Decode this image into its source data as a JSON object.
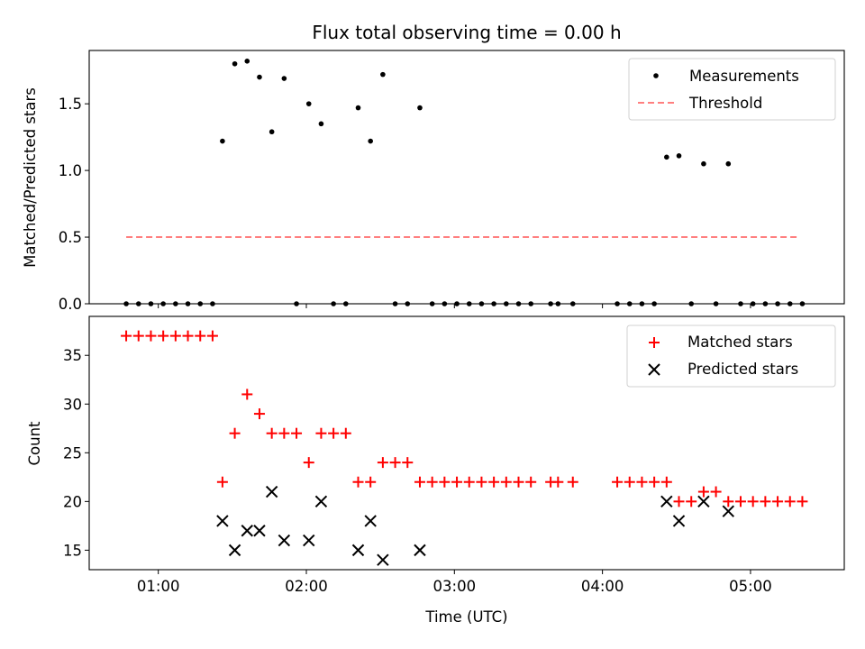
{
  "figure": {
    "title": "Flux total observing time = 0.00 h"
  },
  "chart_data": [
    {
      "type": "scatter",
      "ylabel": "Matched/Predicted stars",
      "xlabel": "",
      "xlim": [
        "00:32",
        "05:38"
      ],
      "ylim": [
        0,
        1.9
      ],
      "yticks": [
        0.0,
        0.5,
        1.0,
        1.5
      ],
      "ytick_labels": [
        "0.0",
        "0.5",
        "1.0",
        "1.5"
      ],
      "legend_position": "top-right",
      "threshold": {
        "value": 0.5,
        "x_start": "00:47",
        "x_end": "05:20",
        "color": "#ff7f7f"
      },
      "series": [
        {
          "name": "Measurements",
          "marker": "dot",
          "color": "#000000",
          "points": [
            [
              "00:47",
              0
            ],
            [
              "00:52",
              0
            ],
            [
              "00:57",
              0
            ],
            [
              "01:02",
              0
            ],
            [
              "01:07",
              0
            ],
            [
              "01:12",
              0
            ],
            [
              "01:17",
              0
            ],
            [
              "01:22",
              0
            ],
            [
              "01:26",
              1.22
            ],
            [
              "01:31",
              1.8
            ],
            [
              "01:36",
              1.82
            ],
            [
              "01:41",
              1.7
            ],
            [
              "01:46",
              1.29
            ],
            [
              "01:51",
              1.69
            ],
            [
              "01:56",
              0
            ],
            [
              "02:01",
              1.5
            ],
            [
              "02:06",
              1.35
            ],
            [
              "02:11",
              0
            ],
            [
              "02:16",
              0
            ],
            [
              "02:21",
              1.47
            ],
            [
              "02:26",
              1.22
            ],
            [
              "02:31",
              1.72
            ],
            [
              "02:36",
              0
            ],
            [
              "02:41",
              0
            ],
            [
              "02:46",
              1.47
            ],
            [
              "02:51",
              0
            ],
            [
              "02:56",
              0
            ],
            [
              "03:01",
              0
            ],
            [
              "03:06",
              0
            ],
            [
              "03:11",
              0
            ],
            [
              "03:16",
              0
            ],
            [
              "03:21",
              0
            ],
            [
              "03:26",
              0
            ],
            [
              "03:31",
              0
            ],
            [
              "03:39",
              0
            ],
            [
              "03:42",
              0
            ],
            [
              "03:48",
              0
            ],
            [
              "04:06",
              0
            ],
            [
              "04:11",
              0
            ],
            [
              "04:16",
              0
            ],
            [
              "04:21",
              0
            ],
            [
              "04:26",
              1.1
            ],
            [
              "04:31",
              1.11
            ],
            [
              "04:36",
              0
            ],
            [
              "04:41",
              1.05
            ],
            [
              "04:46",
              0
            ],
            [
              "04:51",
              1.05
            ],
            [
              "04:56",
              0
            ],
            [
              "05:01",
              0
            ],
            [
              "05:06",
              0
            ],
            [
              "05:11",
              0
            ],
            [
              "05:16",
              0
            ],
            [
              "05:21",
              0
            ]
          ]
        },
        {
          "name": "Threshold",
          "style": "dashed",
          "color": "#ff7f7f"
        }
      ]
    },
    {
      "type": "scatter",
      "ylabel": "Count",
      "xlabel": "Time (UTC)",
      "xlim": [
        "00:32",
        "05:38"
      ],
      "ylim": [
        13,
        39
      ],
      "yticks": [
        15,
        20,
        25,
        30,
        35
      ],
      "ytick_labels": [
        "15",
        "20",
        "25",
        "30",
        "35"
      ],
      "xticks": [
        "01:00",
        "02:00",
        "03:00",
        "04:00",
        "05:00"
      ],
      "legend_position": "top-right",
      "series": [
        {
          "name": "Matched stars",
          "marker": "plus",
          "color": "#ff0000",
          "points": [
            [
              "00:47",
              37
            ],
            [
              "00:52",
              37
            ],
            [
              "00:57",
              37
            ],
            [
              "01:02",
              37
            ],
            [
              "01:07",
              37
            ],
            [
              "01:12",
              37
            ],
            [
              "01:17",
              37
            ],
            [
              "01:22",
              37
            ],
            [
              "01:26",
              22
            ],
            [
              "01:31",
              27
            ],
            [
              "01:36",
              31
            ],
            [
              "01:41",
              29
            ],
            [
              "01:46",
              27
            ],
            [
              "01:51",
              27
            ],
            [
              "01:56",
              27
            ],
            [
              "02:01",
              24
            ],
            [
              "02:06",
              27
            ],
            [
              "02:11",
              27
            ],
            [
              "02:16",
              27
            ],
            [
              "02:21",
              22
            ],
            [
              "02:26",
              22
            ],
            [
              "02:31",
              24
            ],
            [
              "02:36",
              24
            ],
            [
              "02:41",
              24
            ],
            [
              "02:46",
              22
            ],
            [
              "02:51",
              22
            ],
            [
              "02:56",
              22
            ],
            [
              "03:01",
              22
            ],
            [
              "03:06",
              22
            ],
            [
              "03:11",
              22
            ],
            [
              "03:16",
              22
            ],
            [
              "03:21",
              22
            ],
            [
              "03:26",
              22
            ],
            [
              "03:31",
              22
            ],
            [
              "03:39",
              22
            ],
            [
              "03:42",
              22
            ],
            [
              "03:48",
              22
            ],
            [
              "04:06",
              22
            ],
            [
              "04:11",
              22
            ],
            [
              "04:16",
              22
            ],
            [
              "04:21",
              22
            ],
            [
              "04:26",
              22
            ],
            [
              "04:31",
              20
            ],
            [
              "04:36",
              20
            ],
            [
              "04:41",
              21
            ],
            [
              "04:46",
              21
            ],
            [
              "04:51",
              20
            ],
            [
              "04:56",
              20
            ],
            [
              "05:01",
              20
            ],
            [
              "05:06",
              20
            ],
            [
              "05:11",
              20
            ],
            [
              "05:16",
              20
            ],
            [
              "05:21",
              20
            ]
          ]
        },
        {
          "name": "Predicted stars",
          "marker": "x",
          "color": "#000000",
          "points": [
            [
              "01:26",
              18
            ],
            [
              "01:31",
              15
            ],
            [
              "01:36",
              17
            ],
            [
              "01:41",
              17
            ],
            [
              "01:46",
              21
            ],
            [
              "01:51",
              16
            ],
            [
              "02:01",
              16
            ],
            [
              "02:06",
              20
            ],
            [
              "02:21",
              15
            ],
            [
              "02:26",
              18
            ],
            [
              "02:31",
              14
            ],
            [
              "02:46",
              15
            ],
            [
              "04:26",
              20
            ],
            [
              "04:31",
              18
            ],
            [
              "04:41",
              20
            ],
            [
              "04:51",
              19
            ]
          ]
        }
      ]
    }
  ]
}
